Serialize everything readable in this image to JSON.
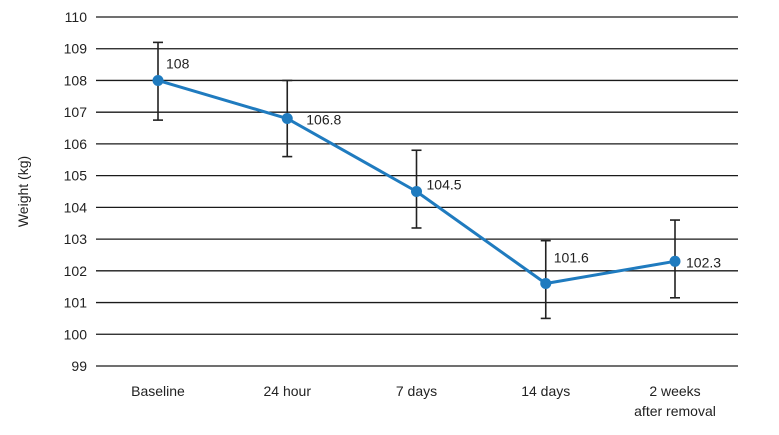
{
  "chart_data": {
    "type": "line",
    "categories": [
      "Baseline",
      "24 hour",
      "7 days",
      "14 days",
      "2 weeks|after removal"
    ],
    "values": [
      108,
      106.8,
      104.5,
      101.6,
      102.3
    ],
    "error_upper": [
      109.2,
      108.0,
      105.8,
      102.95,
      103.6
    ],
    "error_lower": [
      106.75,
      105.6,
      103.35,
      100.5,
      101.15
    ],
    "data_labels": [
      "108",
      "106.8",
      "104.5",
      "101.6",
      "102.3"
    ],
    "ylabel": "Weight (kg)",
    "ylim": [
      99,
      110
    ],
    "yticks": [
      99,
      100,
      101,
      102,
      103,
      104,
      105,
      106,
      107,
      108,
      109,
      110
    ],
    "grid": "horizontal",
    "line_color": "#1f7bbf",
    "grid_color": "#1a1a1a",
    "error_bar_color": "#222222"
  }
}
